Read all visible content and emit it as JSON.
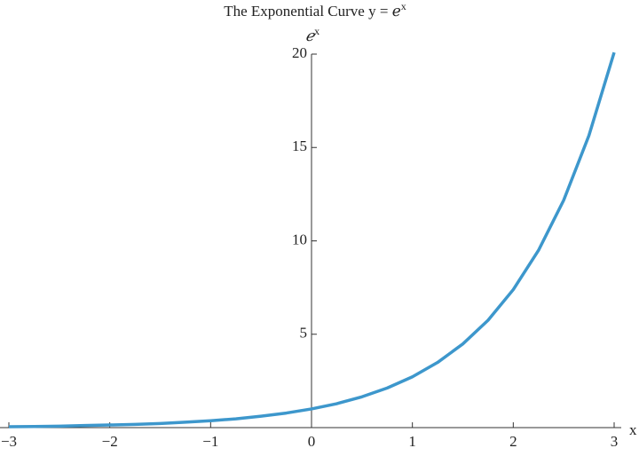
{
  "chart_data": {
    "type": "line",
    "title": "The Exponential Curve y = ℯ",
    "title_exponent": "x",
    "y_label": "ℯ",
    "y_label_exponent": "x",
    "x_label": "x",
    "x": [
      -3,
      -2.75,
      -2.5,
      -2.25,
      -2,
      -1.75,
      -1.5,
      -1.25,
      -1,
      -0.75,
      -0.5,
      -0.25,
      0,
      0.25,
      0.5,
      0.75,
      1,
      1.25,
      1.5,
      1.75,
      2,
      2.25,
      2.5,
      2.75,
      3
    ],
    "series": [
      {
        "color": "#3d97cc",
        "values": [
          0.05,
          0.06,
          0.08,
          0.11,
          0.14,
          0.17,
          0.22,
          0.29,
          0.37,
          0.47,
          0.61,
          0.78,
          1,
          1.28,
          1.65,
          2.12,
          2.72,
          3.49,
          4.48,
          5.75,
          7.39,
          9.49,
          12.18,
          15.64,
          20.09
        ]
      }
    ],
    "xlim": [
      -3,
      3
    ],
    "ylim": [
      0,
      20
    ],
    "xticks": [
      {
        "value": -3,
        "label": "−3"
      },
      {
        "value": -2,
        "label": "−2"
      },
      {
        "value": -1,
        "label": "−1"
      },
      0,
      1,
      2,
      3
    ],
    "yticks": [
      5,
      10,
      15,
      20
    ]
  }
}
